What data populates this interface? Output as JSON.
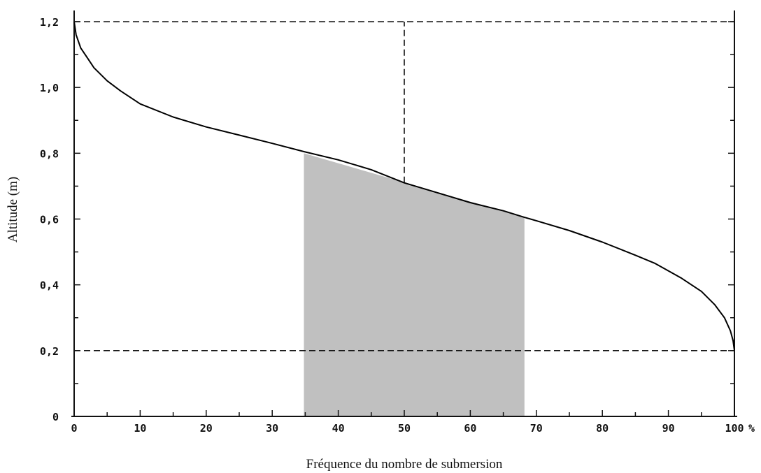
{
  "chart_data": {
    "type": "line",
    "title": "",
    "xlabel": "Fréquence du nombre de submersion",
    "ylabel": "Altitude (m)",
    "xlim": [
      0,
      100
    ],
    "ylim": [
      0,
      1.2
    ],
    "x_ticks": [
      0,
      10,
      20,
      30,
      40,
      50,
      60,
      70,
      80,
      90,
      100
    ],
    "x_tick_labels": [
      "0",
      "10",
      "20",
      "30",
      "40",
      "50",
      "60",
      "70",
      "80",
      "90",
      "100"
    ],
    "x_unit": "%",
    "y_ticks": [
      0,
      0.2,
      0.4,
      0.6,
      0.8,
      1.0,
      1.2
    ],
    "y_tick_labels": [
      "0",
      "0,2",
      "0,4",
      "0,6",
      "0,8",
      "1,0",
      "1,2"
    ],
    "grid": false,
    "reference_lines": [
      {
        "orientation": "horizontal",
        "value": 1.2,
        "style": "dashed"
      },
      {
        "orientation": "horizontal",
        "value": 0.2,
        "style": "dashed"
      },
      {
        "orientation": "vertical",
        "value": 50,
        "from": 0.71,
        "to": 1.2,
        "style": "dashed"
      }
    ],
    "series": [
      {
        "x": [
          0,
          0.3,
          1,
          2,
          3,
          5,
          7,
          10,
          15,
          20,
          25,
          30,
          34.8,
          40,
          45,
          50,
          55,
          60,
          65,
          68.2,
          70,
          75,
          80,
          85,
          88,
          92,
          95,
          97,
          98.5,
          99.4,
          99.8,
          100
        ],
        "y": [
          1.2,
          1.16,
          1.12,
          1.09,
          1.06,
          1.02,
          0.99,
          0.95,
          0.91,
          0.88,
          0.855,
          0.83,
          0.805,
          0.78,
          0.75,
          0.71,
          0.68,
          0.65,
          0.625,
          0.605,
          0.595,
          0.565,
          0.53,
          0.49,
          0.465,
          0.42,
          0.38,
          0.34,
          0.3,
          0.26,
          0.23,
          0.2
        ],
        "color": "#000000"
      }
    ],
    "shaded_region": {
      "color": "#c0c0c0",
      "x": [
        34.8,
        68.2
      ],
      "y_top": [
        0.8,
        0.605
      ],
      "y_bottom": 0
    }
  }
}
